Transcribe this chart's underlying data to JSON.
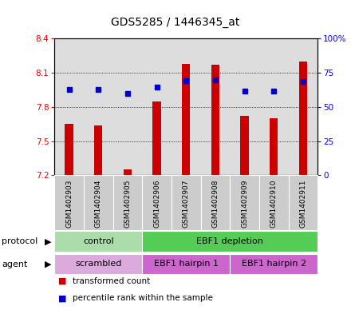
{
  "title": "GDS5285 / 1446345_at",
  "samples": [
    "GSM1402903",
    "GSM1402904",
    "GSM1402905",
    "GSM1402906",
    "GSM1402907",
    "GSM1402908",
    "GSM1402909",
    "GSM1402910",
    "GSM1402911"
  ],
  "bar_values": [
    7.65,
    7.64,
    7.25,
    7.85,
    8.18,
    8.17,
    7.72,
    7.7,
    8.2
  ],
  "bar_base": 7.2,
  "blue_dot_values": [
    7.951,
    7.951,
    7.92,
    7.972,
    8.03,
    8.038,
    7.942,
    7.94,
    8.02
  ],
  "ylim": [
    7.2,
    8.4
  ],
  "y_left_ticks": [
    7.2,
    7.5,
    7.8,
    8.1,
    8.4
  ],
  "y_right_ticks": [
    0,
    25,
    50,
    75,
    100
  ],
  "bar_color": "#cc0000",
  "dot_color": "#0000cc",
  "bg_color": "#dddddd",
  "protocol_groups": [
    {
      "label": "control",
      "start": 0,
      "end": 3,
      "color": "#aaddaa"
    },
    {
      "label": "EBF1 depletion",
      "start": 3,
      "end": 9,
      "color": "#55cc55"
    }
  ],
  "agent_groups": [
    {
      "label": "scrambled",
      "start": 0,
      "end": 3,
      "color": "#ddaadd"
    },
    {
      "label": "EBF1 hairpin 1",
      "start": 3,
      "end": 6,
      "color": "#cc66cc"
    },
    {
      "label": "EBF1 hairpin 2",
      "start": 6,
      "end": 9,
      "color": "#cc66cc"
    }
  ],
  "title_fontsize": 10,
  "tick_fontsize": 7.5,
  "sample_fontsize": 6.5,
  "row_fontsize": 8,
  "legend_fontsize": 7.5
}
